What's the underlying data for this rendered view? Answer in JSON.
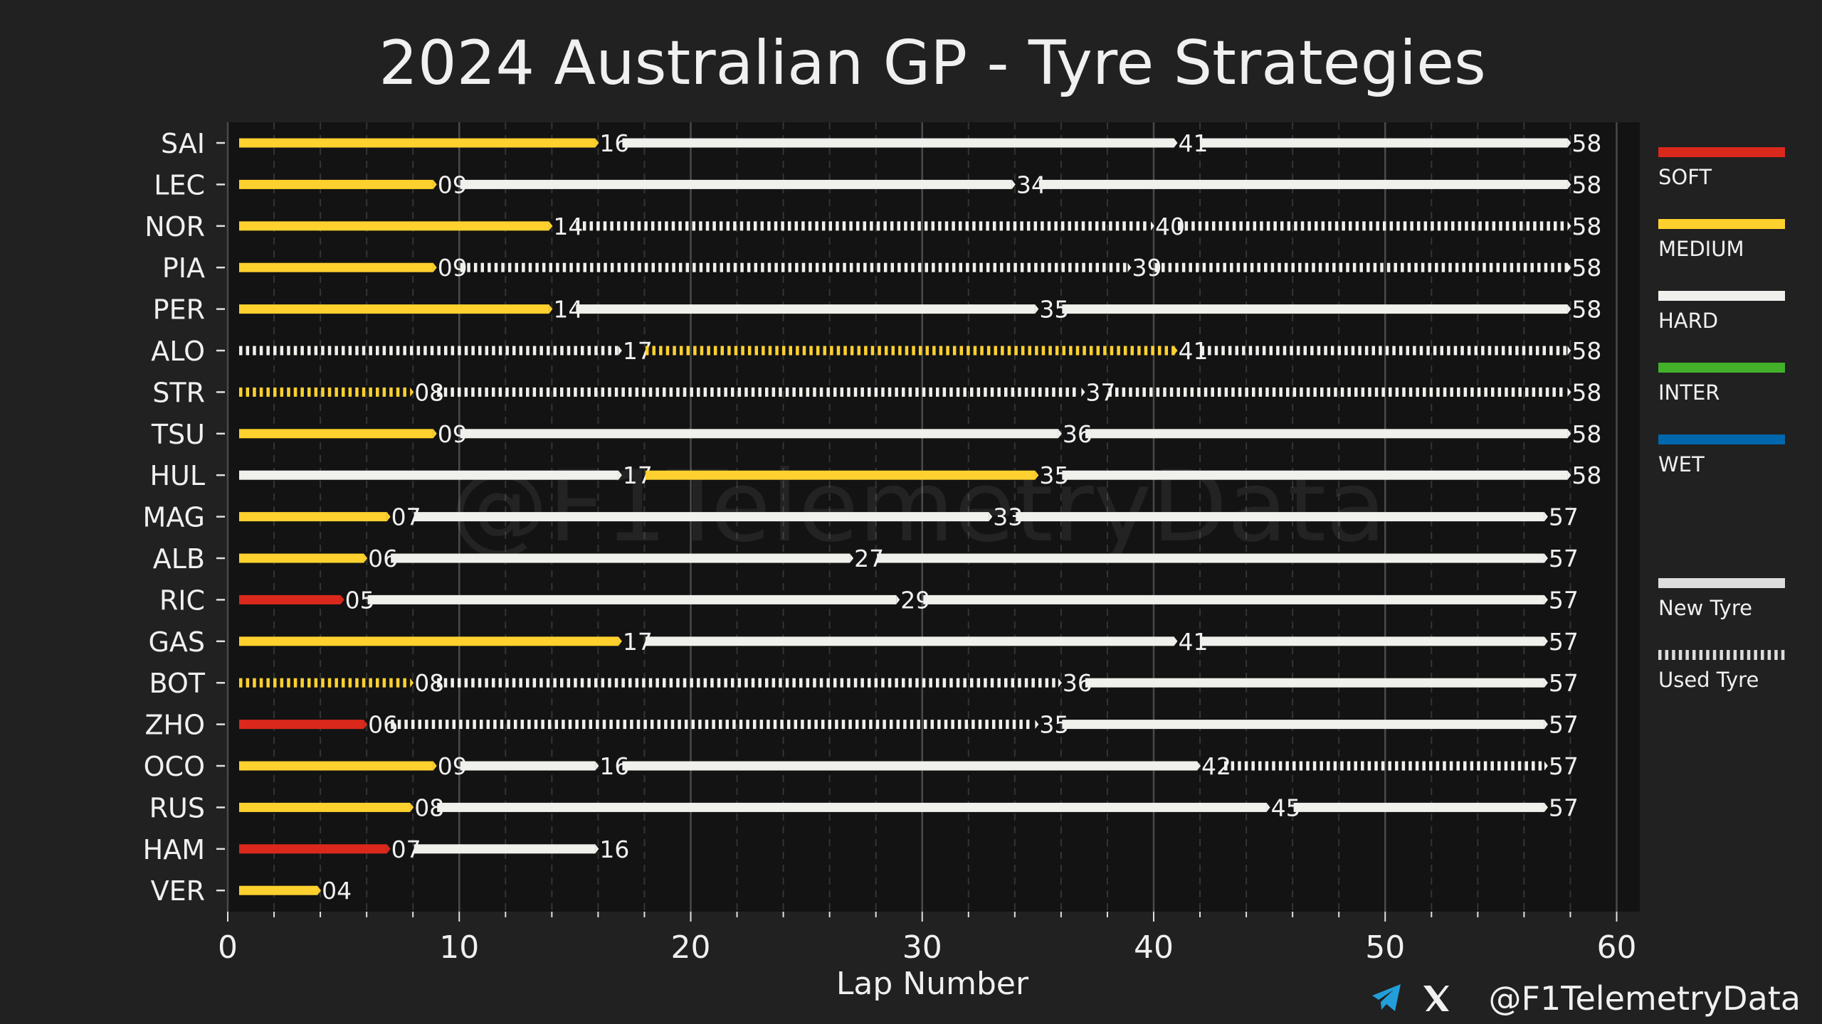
{
  "chart_data": {
    "type": "bar",
    "title": "2024 Australian GP - Tyre Strategies",
    "xlabel": "Lap Number",
    "ylabel": "",
    "xlim": [
      0,
      61
    ],
    "xticks": [
      0,
      10,
      20,
      30,
      40,
      50,
      60
    ],
    "grid": "vertical",
    "watermark": "@F1TelemetryData",
    "compound_colors": {
      "SOFT": "#da291c",
      "MEDIUM": "#ffd12e",
      "HARD": "#f0f0ec",
      "INTER": "#43b02a",
      "WET": "#0067ad"
    },
    "legend": {
      "position": "right",
      "compounds": [
        "SOFT",
        "MEDIUM",
        "HARD",
        "INTER",
        "WET"
      ],
      "tyre_states": [
        {
          "label": "New Tyre",
          "used": false
        },
        {
          "label": "Used Tyre",
          "used": true
        }
      ]
    },
    "drivers": [
      {
        "name": "SAI",
        "stints": [
          {
            "compound": "MEDIUM",
            "start": 0,
            "end": 16,
            "used": false
          },
          {
            "compound": "HARD",
            "start": 16,
            "end": 41,
            "used": false
          },
          {
            "compound": "HARD",
            "start": 41,
            "end": 58,
            "used": false
          }
        ]
      },
      {
        "name": "LEC",
        "stints": [
          {
            "compound": "MEDIUM",
            "start": 0,
            "end": 9,
            "used": false
          },
          {
            "compound": "HARD",
            "start": 9,
            "end": 34,
            "used": false
          },
          {
            "compound": "HARD",
            "start": 34,
            "end": 58,
            "used": false
          }
        ]
      },
      {
        "name": "NOR",
        "stints": [
          {
            "compound": "MEDIUM",
            "start": 0,
            "end": 14,
            "used": false
          },
          {
            "compound": "HARD",
            "start": 14,
            "end": 40,
            "used": true
          },
          {
            "compound": "HARD",
            "start": 40,
            "end": 58,
            "used": true
          }
        ]
      },
      {
        "name": "PIA",
        "stints": [
          {
            "compound": "MEDIUM",
            "start": 0,
            "end": 9,
            "used": false
          },
          {
            "compound": "HARD",
            "start": 9,
            "end": 39,
            "used": true
          },
          {
            "compound": "HARD",
            "start": 39,
            "end": 58,
            "used": true
          }
        ]
      },
      {
        "name": "PER",
        "stints": [
          {
            "compound": "MEDIUM",
            "start": 0,
            "end": 14,
            "used": false
          },
          {
            "compound": "HARD",
            "start": 14,
            "end": 35,
            "used": false
          },
          {
            "compound": "HARD",
            "start": 35,
            "end": 58,
            "used": false
          }
        ]
      },
      {
        "name": "ALO",
        "stints": [
          {
            "compound": "HARD",
            "start": 0,
            "end": 17,
            "used": true
          },
          {
            "compound": "MEDIUM",
            "start": 17,
            "end": 41,
            "used": true
          },
          {
            "compound": "HARD",
            "start": 41,
            "end": 58,
            "used": true
          }
        ]
      },
      {
        "name": "STR",
        "stints": [
          {
            "compound": "MEDIUM",
            "start": 0,
            "end": 8,
            "used": true
          },
          {
            "compound": "HARD",
            "start": 8,
            "end": 37,
            "used": true
          },
          {
            "compound": "HARD",
            "start": 37,
            "end": 58,
            "used": true
          }
        ]
      },
      {
        "name": "TSU",
        "stints": [
          {
            "compound": "MEDIUM",
            "start": 0,
            "end": 9,
            "used": false
          },
          {
            "compound": "HARD",
            "start": 9,
            "end": 36,
            "used": false
          },
          {
            "compound": "HARD",
            "start": 36,
            "end": 58,
            "used": false
          }
        ]
      },
      {
        "name": "HUL",
        "stints": [
          {
            "compound": "HARD",
            "start": 0,
            "end": 17,
            "used": false
          },
          {
            "compound": "MEDIUM",
            "start": 17,
            "end": 35,
            "used": false
          },
          {
            "compound": "HARD",
            "start": 35,
            "end": 58,
            "used": false
          }
        ]
      },
      {
        "name": "MAG",
        "stints": [
          {
            "compound": "MEDIUM",
            "start": 0,
            "end": 7,
            "used": false
          },
          {
            "compound": "HARD",
            "start": 7,
            "end": 33,
            "used": false
          },
          {
            "compound": "HARD",
            "start": 33,
            "end": 57,
            "used": false
          }
        ]
      },
      {
        "name": "ALB",
        "stints": [
          {
            "compound": "MEDIUM",
            "start": 0,
            "end": 6,
            "used": false
          },
          {
            "compound": "HARD",
            "start": 6,
            "end": 27,
            "used": false
          },
          {
            "compound": "HARD",
            "start": 27,
            "end": 57,
            "used": false
          }
        ]
      },
      {
        "name": "RIC",
        "stints": [
          {
            "compound": "SOFT",
            "start": 0,
            "end": 5,
            "used": false
          },
          {
            "compound": "HARD",
            "start": 5,
            "end": 29,
            "used": false
          },
          {
            "compound": "HARD",
            "start": 29,
            "end": 57,
            "used": false
          }
        ]
      },
      {
        "name": "GAS",
        "stints": [
          {
            "compound": "MEDIUM",
            "start": 0,
            "end": 17,
            "used": false
          },
          {
            "compound": "HARD",
            "start": 17,
            "end": 41,
            "used": false
          },
          {
            "compound": "HARD",
            "start": 41,
            "end": 57,
            "used": false
          }
        ]
      },
      {
        "name": "BOT",
        "stints": [
          {
            "compound": "MEDIUM",
            "start": 0,
            "end": 8,
            "used": true
          },
          {
            "compound": "HARD",
            "start": 8,
            "end": 36,
            "used": true
          },
          {
            "compound": "HARD",
            "start": 36,
            "end": 57,
            "used": false
          }
        ]
      },
      {
        "name": "ZHO",
        "stints": [
          {
            "compound": "SOFT",
            "start": 0,
            "end": 6,
            "used": false
          },
          {
            "compound": "HARD",
            "start": 6,
            "end": 35,
            "used": true
          },
          {
            "compound": "HARD",
            "start": 35,
            "end": 57,
            "used": false
          }
        ]
      },
      {
        "name": "OCO",
        "stints": [
          {
            "compound": "MEDIUM",
            "start": 0,
            "end": 9,
            "used": false
          },
          {
            "compound": "HARD",
            "start": 9,
            "end": 16,
            "used": false
          },
          {
            "compound": "HARD",
            "start": 16,
            "end": 42,
            "used": false
          },
          {
            "compound": "HARD",
            "start": 42,
            "end": 57,
            "used": true
          }
        ]
      },
      {
        "name": "RUS",
        "stints": [
          {
            "compound": "MEDIUM",
            "start": 0,
            "end": 8,
            "used": false
          },
          {
            "compound": "HARD",
            "start": 8,
            "end": 45,
            "used": false
          },
          {
            "compound": "HARD",
            "start": 45,
            "end": 57,
            "used": false
          }
        ]
      },
      {
        "name": "HAM",
        "stints": [
          {
            "compound": "SOFT",
            "start": 0,
            "end": 7,
            "used": false
          },
          {
            "compound": "HARD",
            "start": 7,
            "end": 16,
            "used": false
          }
        ]
      },
      {
        "name": "VER",
        "stints": [
          {
            "compound": "MEDIUM",
            "start": 0,
            "end": 4,
            "used": false
          }
        ]
      }
    ]
  },
  "footer": {
    "handle": "@F1TelemetryData",
    "icons": [
      "telegram-icon",
      "x-icon"
    ],
    "telegram_color": "#229ed9"
  }
}
